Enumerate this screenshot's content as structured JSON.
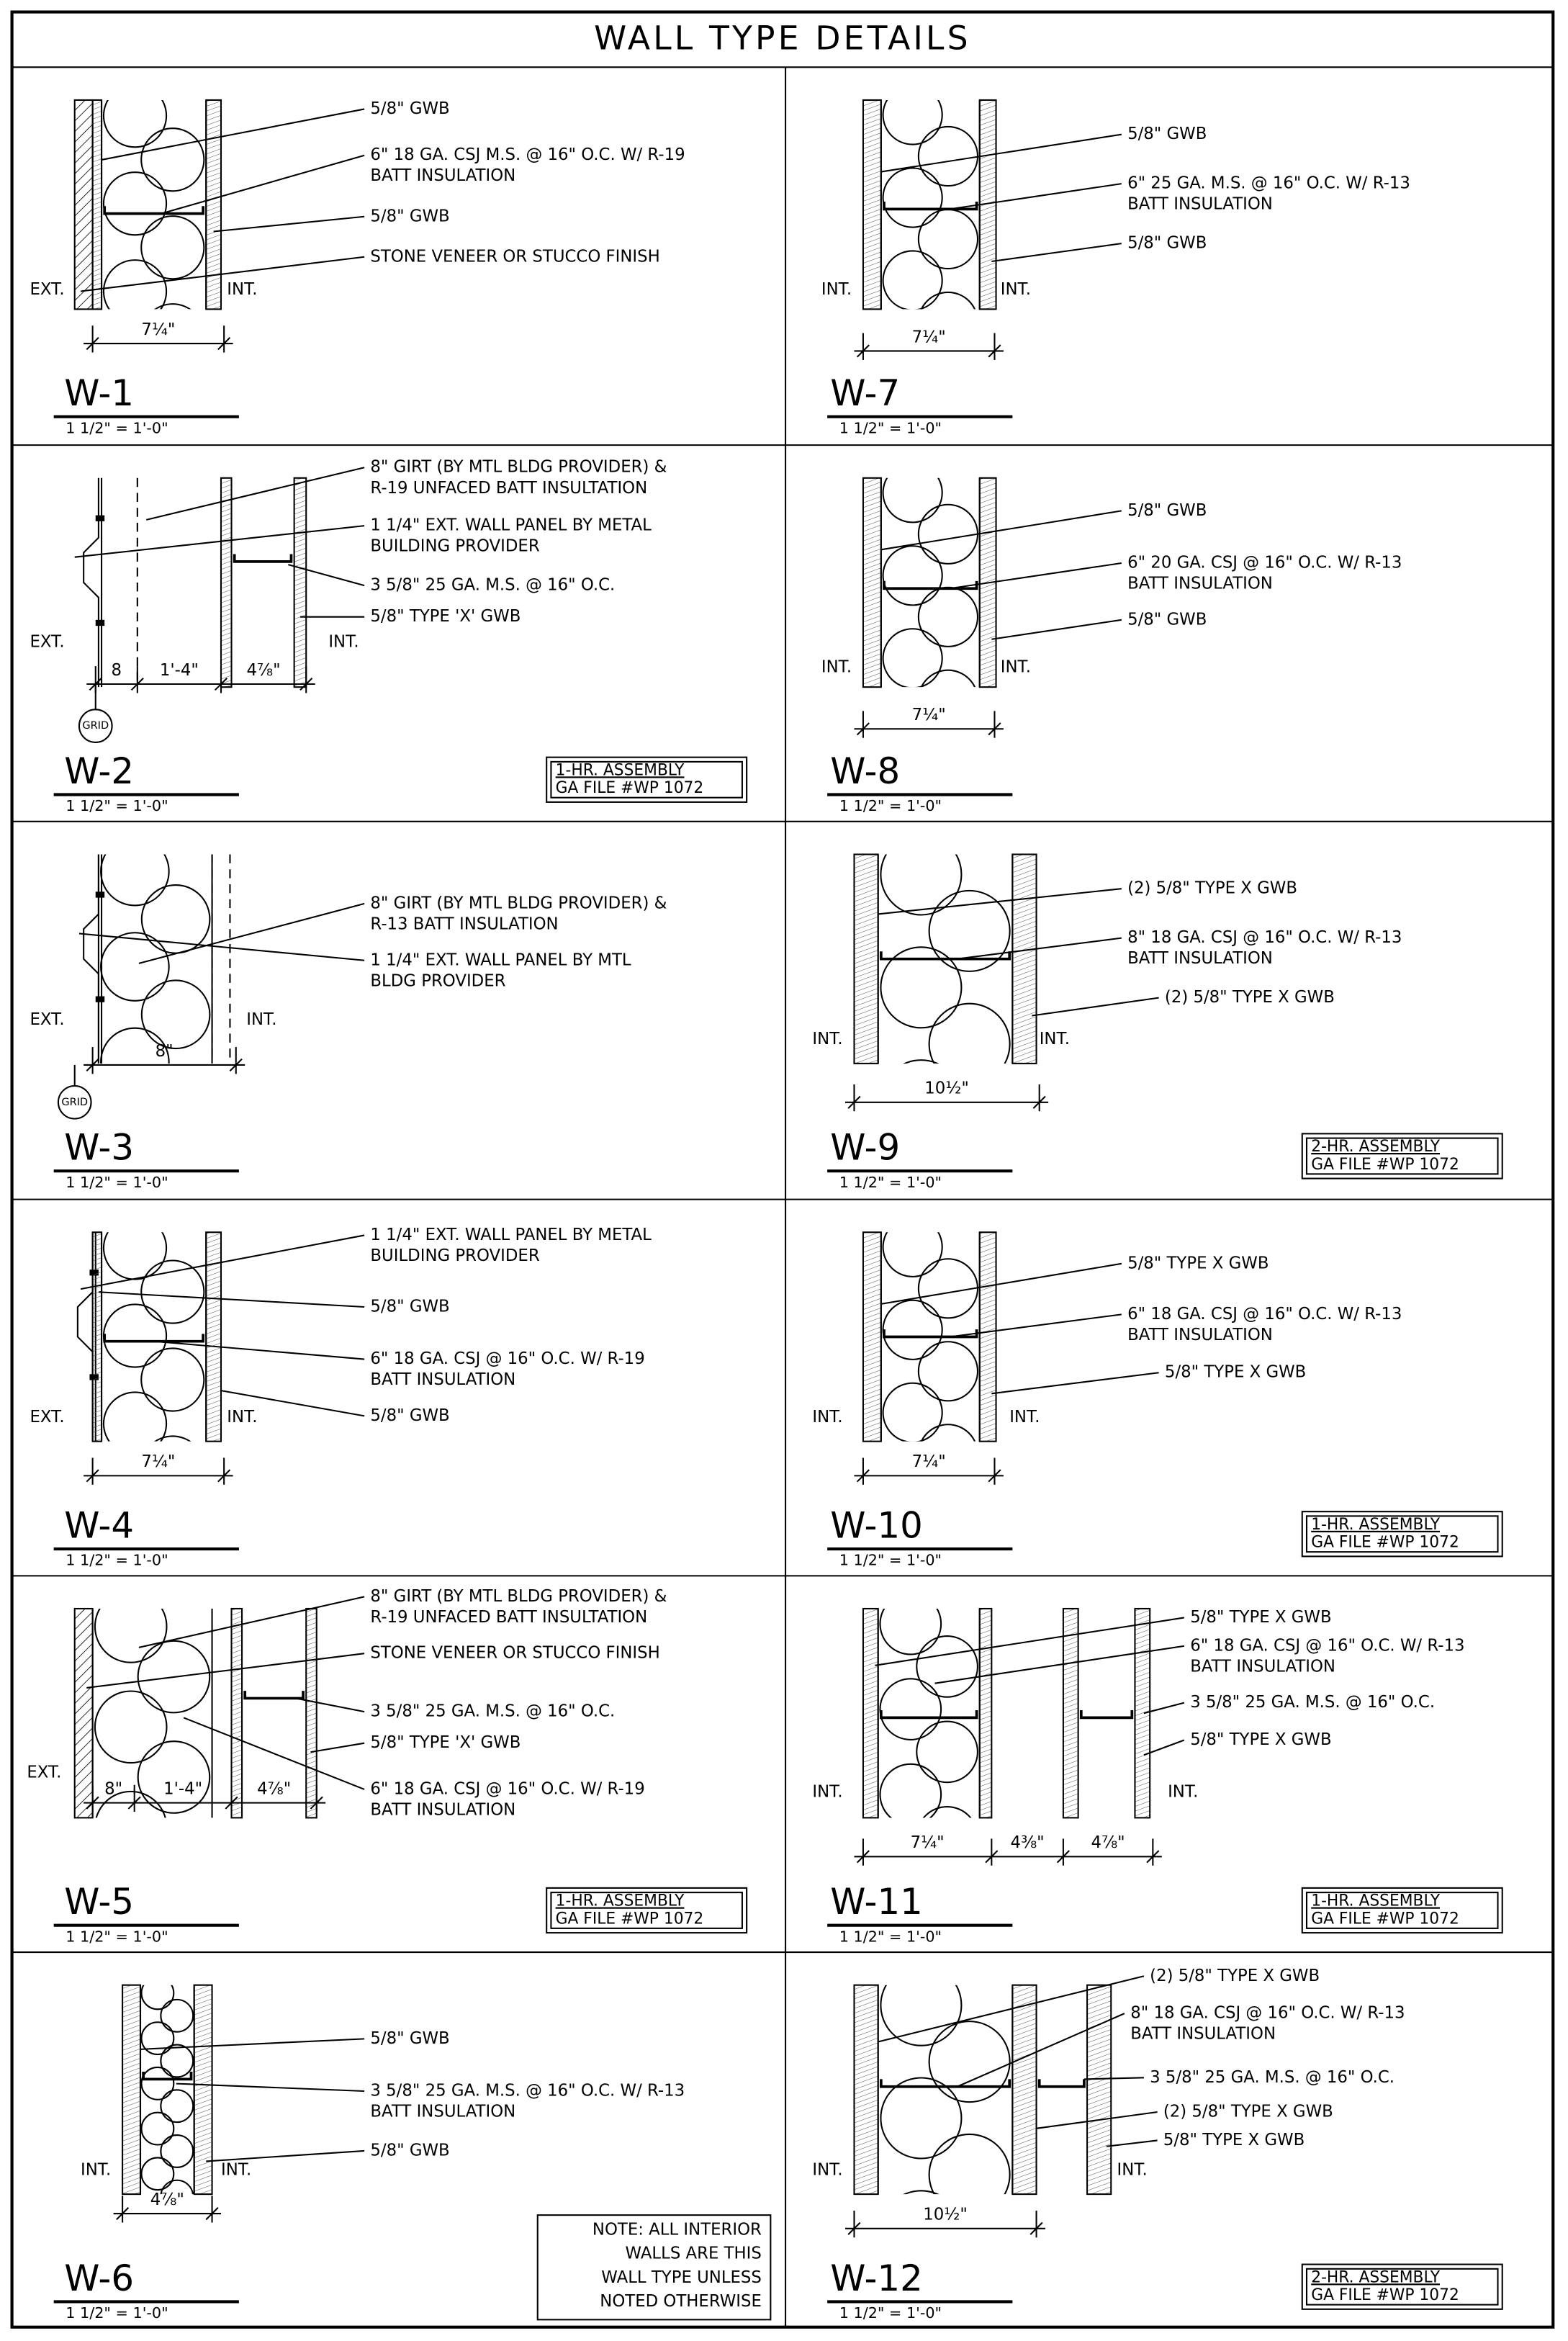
{
  "title": "WALL TYPE DETAILS",
  "panels": [
    {
      "id": "W-1",
      "scale": "1 1/2\" = 1'-0\"",
      "callouts": [
        [
          "5/8\" GWB"
        ],
        [
          "6\" 18 GA. CSJ M.S. @ 16\" O.C. W/ R-19",
          "BATT INSULATION"
        ],
        [
          "5/8\" GWB"
        ],
        [
          "STONE VENEER OR STUCCO FINISH"
        ]
      ],
      "sides": [
        "EXT.",
        "INT."
      ],
      "dims": [
        "7¼\""
      ]
    },
    {
      "id": "W-2",
      "scale": "1 1/2\" = 1'-0\"",
      "callouts": [
        [
          "8\" GIRT (BY MTL BLDG PROVIDER) &",
          "R-19 UNFACED BATT INSULTATION"
        ],
        [
          "1 1/4\" EXT. WALL PANEL BY METAL",
          "BUILDING PROVIDER"
        ],
        [
          "3 5/8\" 25 GA. M.S. @ 16\" O.C."
        ],
        [
          "5/8\" TYPE 'X' GWB"
        ]
      ],
      "sides": [
        "EXT.",
        "INT."
      ],
      "dims": [
        "8",
        "1'-4\"",
        "4⅞\""
      ],
      "grid": "GRID",
      "assembly": [
        "1-HR. ASSEMBLY",
        "GA FILE #WP 1072"
      ]
    },
    {
      "id": "W-3",
      "scale": "1 1/2\" = 1'-0\"",
      "callouts": [
        [
          "8\" GIRT (BY MTL BLDG PROVIDER) &",
          "R-13 BATT INSULATION"
        ],
        [
          "1 1/4\" EXT. WALL PANEL BY MTL",
          "BLDG PROVIDER"
        ]
      ],
      "sides": [
        "EXT.",
        "INT."
      ],
      "dims": [
        "8\""
      ],
      "grid": "GRID"
    },
    {
      "id": "W-4",
      "scale": "1 1/2\" = 1'-0\"",
      "callouts": [
        [
          "1 1/4\" EXT. WALL PANEL BY METAL",
          "BUILDING PROVIDER"
        ],
        [
          "5/8\" GWB"
        ],
        [
          "6\" 18 GA. CSJ @ 16\" O.C. W/ R-19",
          "BATT INSULATION"
        ],
        [
          "5/8\" GWB"
        ]
      ],
      "sides": [
        "EXT.",
        "INT."
      ],
      "dims": [
        "7¼\""
      ]
    },
    {
      "id": "W-5",
      "scale": "1 1/2\" = 1'-0\"",
      "callouts": [
        [
          "8\" GIRT (BY MTL BLDG PROVIDER) &",
          "R-19 UNFACED BATT INSULTATION"
        ],
        [
          "STONE VENEER OR STUCCO FINISH"
        ],
        [
          "3 5/8\" 25 GA. M.S. @ 16\" O.C."
        ],
        [
          "5/8\" TYPE 'X' GWB"
        ],
        [
          "6\" 18 GA. CSJ @ 16\" O.C. W/ R-19",
          "BATT INSULATION"
        ]
      ],
      "sides": [
        "EXT."
      ],
      "dims": [
        "8\"",
        "1'-4\"",
        "4⅞\""
      ],
      "assembly": [
        "1-HR. ASSEMBLY",
        "GA FILE #WP 1072"
      ]
    },
    {
      "id": "W-6",
      "scale": "1 1/2\" = 1'-0\"",
      "callouts": [
        [
          "5/8\" GWB"
        ],
        [
          "3 5/8\" 25 GA. M.S. @ 16\" O.C. W/ R-13",
          "BATT INSULATION"
        ],
        [
          "5/8\" GWB"
        ]
      ],
      "sides": [
        "INT.",
        "INT."
      ],
      "dims": [
        "4⅞\""
      ],
      "note": [
        "NOTE: ALL INTERIOR",
        "WALLS ARE THIS",
        "WALL TYPE UNLESS",
        "NOTED OTHERWISE"
      ]
    },
    {
      "id": "W-7",
      "scale": "1 1/2\" = 1'-0\"",
      "callouts": [
        [
          "5/8\" GWB"
        ],
        [
          "6\" 25 GA. M.S. @ 16\" O.C. W/ R-13",
          "BATT INSULATION"
        ],
        [
          "5/8\" GWB"
        ]
      ],
      "sides": [
        "INT.",
        "INT."
      ],
      "dims": [
        "7¼\""
      ]
    },
    {
      "id": "W-8",
      "scale": "1 1/2\" = 1'-0\"",
      "callouts": [
        [
          "5/8\" GWB"
        ],
        [
          "6\" 20 GA. CSJ @ 16\" O.C. W/ R-13",
          "BATT INSULATION"
        ],
        [
          "5/8\" GWB"
        ]
      ],
      "sides": [
        "INT.",
        "INT."
      ],
      "dims": [
        "7¼\""
      ]
    },
    {
      "id": "W-9",
      "scale": "1 1/2\" = 1'-0\"",
      "callouts": [
        [
          "(2) 5/8\" TYPE X GWB"
        ],
        [
          "8\" 18 GA. CSJ @ 16\" O.C. W/ R-13",
          "BATT INSULATION"
        ],
        [
          "(2) 5/8\" TYPE X GWB"
        ]
      ],
      "sides": [
        "INT.",
        "INT."
      ],
      "dims": [
        "10½\""
      ],
      "assembly": [
        "2-HR. ASSEMBLY",
        "GA FILE #WP 1072"
      ]
    },
    {
      "id": "W-10",
      "scale": "1 1/2\" = 1'-0\"",
      "callouts": [
        [
          "5/8\" TYPE X GWB"
        ],
        [
          "6\" 18 GA. CSJ @ 16\" O.C. W/ R-13",
          "BATT INSULATION"
        ],
        [
          "5/8\" TYPE X GWB"
        ]
      ],
      "sides": [
        "INT.",
        "INT."
      ],
      "dims": [
        "7¼\""
      ],
      "assembly": [
        "1-HR. ASSEMBLY",
        "GA FILE #WP 1072"
      ]
    },
    {
      "id": "W-11",
      "scale": "1 1/2\" = 1'-0\"",
      "callouts": [
        [
          "5/8\" TYPE X GWB"
        ],
        [
          "6\" 18 GA. CSJ @ 16\" O.C. W/ R-13",
          "BATT INSULATION"
        ],
        [
          "3 5/8\" 25 GA. M.S. @ 16\" O.C."
        ],
        [
          "5/8\" TYPE X GWB"
        ]
      ],
      "sides": [
        "INT.",
        "INT."
      ],
      "dims": [
        "7¼\"",
        "4⅜\"",
        "4⅞\""
      ],
      "assembly": [
        "1-HR. ASSEMBLY",
        "GA FILE #WP 1072"
      ]
    },
    {
      "id": "W-12",
      "scale": "1 1/2\" = 1'-0\"",
      "callouts": [
        [
          "(2) 5/8\" TYPE X GWB"
        ],
        [
          "8\" 18 GA. CSJ @ 16\" O.C. W/ R-13",
          "BATT INSULATION"
        ],
        [
          "3 5/8\" 25 GA. M.S. @ 16\" O.C."
        ],
        [
          "(2) 5/8\" TYPE X GWB"
        ],
        [
          "5/8\" TYPE X GWB"
        ]
      ],
      "sides": [
        "INT.",
        "INT."
      ],
      "dims": [
        "10½\""
      ],
      "assembly": [
        "2-HR. ASSEMBLY",
        "GA FILE #WP 1072"
      ]
    }
  ]
}
